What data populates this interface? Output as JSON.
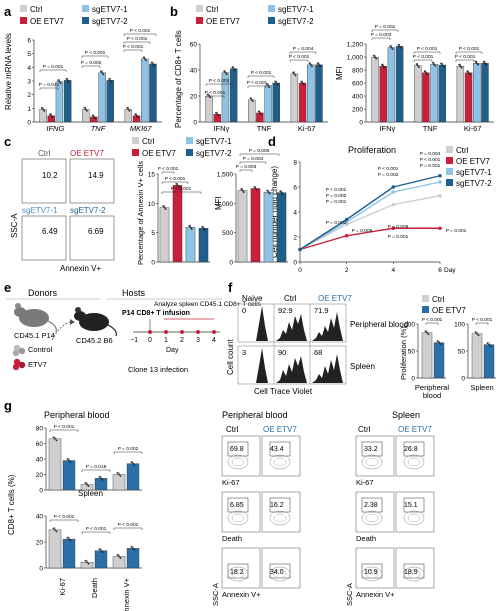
{
  "colors": {
    "ctrl": "#cfcfcf",
    "oe": "#c8203a",
    "sg1": "#8ec3e6",
    "sg2": "#1f5f8b",
    "oeBlue": "#2a6fa8",
    "line": "#333333",
    "dot": "#222222"
  },
  "panels": {
    "a": "a",
    "b": "b",
    "c": "c",
    "d": "d",
    "e": "e",
    "f": "f",
    "g": "g"
  },
  "legend4": [
    "Ctrl",
    "OE ETV7",
    "sgETV7-1",
    "sgETV7-2"
  ],
  "legend2": [
    "Ctrl",
    "OE ETV7"
  ],
  "panel_a": {
    "ylabel": "Relative mRNA levels",
    "yticks": [
      "0",
      "1",
      "2",
      "3",
      "4",
      "5",
      "6"
    ],
    "pvals": [
      "P = 0.041",
      "P = 0.001",
      "P = 0.002",
      "P < 0.001",
      "P < 0.001",
      "P < 0.001",
      "P < 0.001"
    ]
  },
  "panel_b": {
    "left_ylabel": "Percentage of CD8+ T cells",
    "left_yticks": [
      "0",
      "20",
      "40",
      "60"
    ],
    "right_ylabel": "MFI",
    "right_yticks": [
      "0",
      "200",
      "400",
      "600",
      "800",
      "1,000",
      "1,200"
    ],
    "pvals": [
      "P < 0.001",
      "P < 0.001",
      "P < 0.001",
      "P < 0.001",
      "P < 0.001",
      "P = 0.004",
      "P = 0.003",
      "P = 0.001",
      "P < 0.001",
      "P < 0.001",
      "P < 0.001",
      "P < 0.001"
    ]
  },
  "panel_c": {
    "flow_labels": [
      "Ctrl",
      "OE ETV7",
      "sgETV7-1",
      "sgETV7-2"
    ],
    "flow_values": [
      "10.2",
      "14.9",
      "6.49",
      "6.69"
    ],
    "xlabel": "Annexin V+",
    "ylabel": "SSC-A",
    "bar1_ylabel": "Percentage of Annexin V+ cells",
    "bar1_yticks": [
      "0",
      "5",
      "10",
      "15"
    ],
    "bar2_ylabel": "MFI",
    "bar2_yticks": [
      "0",
      "500",
      "1,000",
      "1,500"
    ],
    "pvals": [
      "P < 0.001",
      "P < 0.001",
      "P < 0.001",
      "P = 0.003",
      "P = 0.004",
      "P = 0.005"
    ]
  },
  "panel_d": {
    "title": "Proliferation",
    "ylabel": "Cell number (fold change)",
    "xlabel_unit": "Day",
    "pvals_top": [
      "P = 0.004",
      "P < 0.001",
      "P = 0.001",
      "P = 0.002",
      "P = 0.001",
      "P < 0.001",
      "P < 0.001",
      "P = 0.002"
    ],
    "pvals_bot": [
      "P = 0.002",
      "P = 0.009",
      "P = 0.009",
      "P = 0.001",
      "P = 0.001"
    ]
  },
  "panel_e": {
    "donors": "Donors",
    "hosts": "Hosts",
    "donor_mouse": "CD45.1 P14",
    "control": "Control",
    "etv7": "ETV7",
    "host_mouse": "CD45.2 B6",
    "infusion": "P14 CD8+ T infusion",
    "analyze": "Analyze spleen CD45.1 CD8+ T cells",
    "timeline_ticks": [
      "−1",
      "0",
      "1",
      "2",
      "3",
      "4"
    ],
    "day": "Day",
    "clone": "Clone 13 infection"
  },
  "panel_f": {
    "headers": [
      "Naive",
      "Ctrl",
      "OE ETV7"
    ],
    "row1_values": [
      "0",
      "92.9",
      "71.9"
    ],
    "row2_values": [
      "3",
      "90",
      "68"
    ],
    "row_labels": [
      "Peripheral blood",
      "Spleen"
    ],
    "ylabel": "Cell count",
    "xlabel": "Cell Trace Violet",
    "bar_ylabel": "Proliferation (%)",
    "bar_yticks": [
      "0",
      "50",
      "100"
    ],
    "pvals": [
      "P < 0.001",
      "P < 0.001"
    ],
    "bar_xlabels": [
      "Peripheral blood",
      "Spleen"
    ]
  },
  "panel_g": {
    "title_pb": "Peripheral blood",
    "title_spleen": "Spleen",
    "ylabel": "CD8+ T cells (%)",
    "yticks_top": [
      "0",
      "20",
      "40",
      "60",
      "80"
    ],
    "yticks_bot": [
      "0",
      "20",
      "40"
    ],
    "xlabels": [
      "Ki-67",
      "Death",
      "Annexin V+"
    ],
    "pvals_top": [
      "P < 0.001",
      "P = 0.018",
      "P = 0.002"
    ],
    "pvals_bot": [
      "P < 0.001",
      "P < 0.001",
      "P < 0.001"
    ],
    "flow_col_headers": [
      "Ctrl",
      "OE ETV7"
    ],
    "pb_values": [
      "69.8",
      "43.4",
      "6.85",
      "16.2",
      "18.2",
      "34.0"
    ],
    "spleen_values": [
      "33.2",
      "26.8",
      "2.38",
      "15.1",
      "10.9",
      "18.9"
    ],
    "flow_row_labels": [
      "Ki-67",
      "Death",
      "Annexin V+"
    ],
    "flow_ylabel": "SSC-A"
  },
  "chart_data": [
    {
      "type": "bar",
      "panel": "a",
      "categories": [
        "IFNG",
        "TNF",
        "MKI67"
      ],
      "series": [
        {
          "name": "Ctrl",
          "values": [
            1.0,
            1.0,
            1.0
          ]
        },
        {
          "name": "OE ETV7",
          "values": [
            0.5,
            0.4,
            0.5
          ]
        },
        {
          "name": "sgETV7-1",
          "values": [
            3.2,
            3.9,
            5.0
          ]
        },
        {
          "name": "sgETV7-2",
          "values": [
            3.3,
            3.3,
            4.6
          ]
        }
      ],
      "ylabel": "Relative mRNA levels",
      "ylim": [
        0,
        6.5
      ]
    },
    {
      "type": "bar",
      "panel": "b-left",
      "categories": [
        "IFNγ",
        "TNF",
        "Ki-67"
      ],
      "series": [
        {
          "name": "Ctrl",
          "values": [
            20,
            17,
            37
          ]
        },
        {
          "name": "OE ETV7",
          "values": [
            6,
            7,
            30
          ]
        },
        {
          "name": "sgETV7-1",
          "values": [
            38,
            28,
            44
          ]
        },
        {
          "name": "sgETV7-2",
          "values": [
            41,
            30,
            44
          ]
        }
      ],
      "ylabel": "Percentage of CD8+ T cells",
      "ylim": [
        0,
        60
      ]
    },
    {
      "type": "bar",
      "panel": "b-right",
      "categories": [
        "IFNγ",
        "TNF",
        "Ki-67"
      ],
      "series": [
        {
          "name": "Ctrl",
          "values": [
            1080,
            940,
            930
          ]
        },
        {
          "name": "OE ETV7",
          "values": [
            930,
            820,
            820
          ]
        },
        {
          "name": "sgETV7-1",
          "values": [
            1240,
            960,
            980
          ]
        },
        {
          "name": "sgETV7-2",
          "values": [
            1260,
            950,
            980
          ]
        }
      ],
      "ylabel": "MFI",
      "ylim": [
        0,
        1300
      ]
    },
    {
      "type": "bar",
      "panel": "c-percent",
      "categories": [
        "Ctrl",
        "OE ETV7",
        "sgETV7-1",
        "sgETV7-2"
      ],
      "values": [
        10.5,
        14.8,
        6.7,
        6.5
      ],
      "ylabel": "Percentage of Annexin V+ cells",
      "ylim": [
        0,
        17
      ]
    },
    {
      "type": "bar",
      "panel": "c-mfi",
      "categories": [
        "Ctrl",
        "OE ETV7",
        "sgETV7-1",
        "sgETV7-2"
      ],
      "values": [
        1380,
        1420,
        1350,
        1340
      ],
      "ylabel": "MFI",
      "ylim": [
        0,
        1700
      ]
    },
    {
      "type": "line",
      "panel": "d",
      "x": [
        0,
        2,
        4,
        6
      ],
      "series": [
        {
          "name": "Ctrl",
          "values": [
            1.0,
            3.0,
            4.6,
            5.3
          ]
        },
        {
          "name": "OE ETV7",
          "values": [
            1.0,
            2.1,
            2.7,
            2.7
          ]
        },
        {
          "name": "sgETV7-1",
          "values": [
            1.0,
            3.2,
            5.6,
            6.4
          ]
        },
        {
          "name": "sgETV7-2",
          "values": [
            1.0,
            3.4,
            6.0,
            6.9
          ]
        }
      ],
      "ylabel": "Cell number (fold change)",
      "xlabel": "Day",
      "xlim": [
        0,
        6
      ],
      "ylim": [
        0,
        8
      ]
    },
    {
      "type": "bar",
      "panel": "f",
      "categories": [
        "Peripheral blood",
        "Spleen"
      ],
      "series": [
        {
          "name": "Ctrl",
          "values": [
            92,
            90
          ]
        },
        {
          "name": "OE ETV7",
          "values": [
            72,
            68
          ]
        }
      ],
      "ylabel": "Proliferation (%)",
      "ylim": [
        0,
        110
      ]
    },
    {
      "type": "bar",
      "panel": "g-top",
      "categories": [
        "Ki-67",
        "Death",
        "Annexin V+"
      ],
      "series": [
        {
          "name": "Ctrl",
          "values": [
            66,
            7,
            20
          ]
        },
        {
          "name": "OE ETV7",
          "values": [
            38,
            15,
            34
          ]
        }
      ],
      "ylabel": "CD8+ T cells (%)",
      "ylim": [
        0,
        80
      ]
    },
    {
      "type": "bar",
      "panel": "g-bottom",
      "categories": [
        "Ki-67",
        "Death",
        "Annexin V+"
      ],
      "series": [
        {
          "name": "Ctrl",
          "values": [
            33,
            5,
            10
          ]
        },
        {
          "name": "OE ETV7",
          "values": [
            25,
            15,
            17
          ]
        }
      ],
      "ylabel": "CD8+ T cells (%)",
      "ylim": [
        0,
        45
      ]
    }
  ]
}
